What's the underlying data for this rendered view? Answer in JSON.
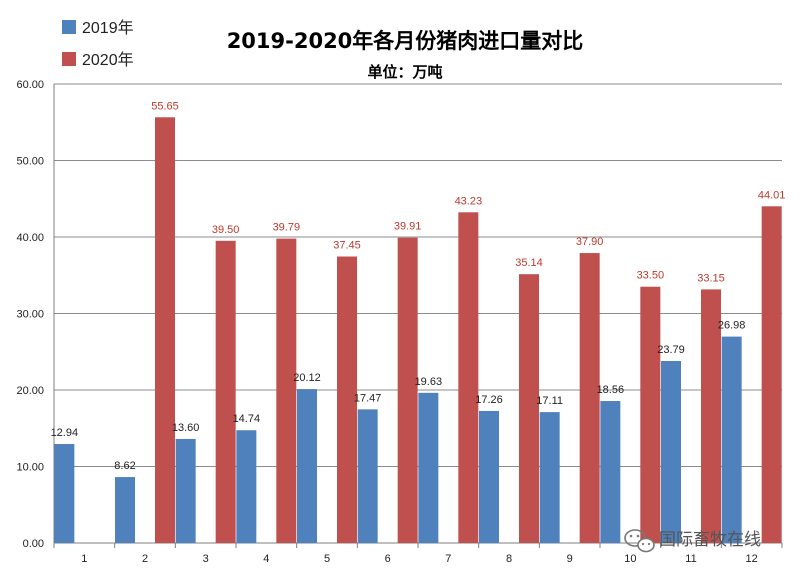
{
  "chart_data": {
    "type": "bar",
    "title": "2019-2020年各月份猪肉进口量对比",
    "subtitle": "单位：万吨",
    "categories": [
      "1",
      "2",
      "3",
      "4",
      "5",
      "6",
      "7",
      "8",
      "9",
      "10",
      "11",
      "12"
    ],
    "series": [
      {
        "name": "2019年",
        "color": "#4f81bd",
        "values": [
          12.94,
          8.62,
          13.6,
          14.74,
          20.12,
          17.47,
          19.63,
          17.26,
          17.11,
          18.56,
          23.79,
          26.98
        ],
        "labels": [
          "12.94",
          "8.62",
          "13.60",
          "14.74",
          "20.12",
          "17.47",
          "19.63",
          "17.26",
          "17.11",
          "18.56",
          "23.79",
          "26.98"
        ]
      },
      {
        "name": "2020年",
        "color": "#c0504d",
        "values": [
          null,
          55.65,
          39.5,
          39.79,
          37.45,
          39.91,
          43.23,
          35.14,
          37.9,
          33.5,
          33.15,
          44.01
        ],
        "labels": [
          "",
          "55.65",
          "39.50",
          "39.79",
          "37.45",
          "39.91",
          "43.23",
          "35.14",
          "37.90",
          "33.50",
          "33.15",
          "44.01"
        ]
      }
    ],
    "ylim": [
      0,
      60
    ],
    "yticks": [
      "0.00",
      "10.00",
      "20.00",
      "30.00",
      "40.00",
      "50.00",
      "60.00"
    ],
    "grid": true,
    "legend": "top-left"
  },
  "watermark": {
    "text": "国际畜牧在线",
    "icon": "wechat-icon"
  }
}
